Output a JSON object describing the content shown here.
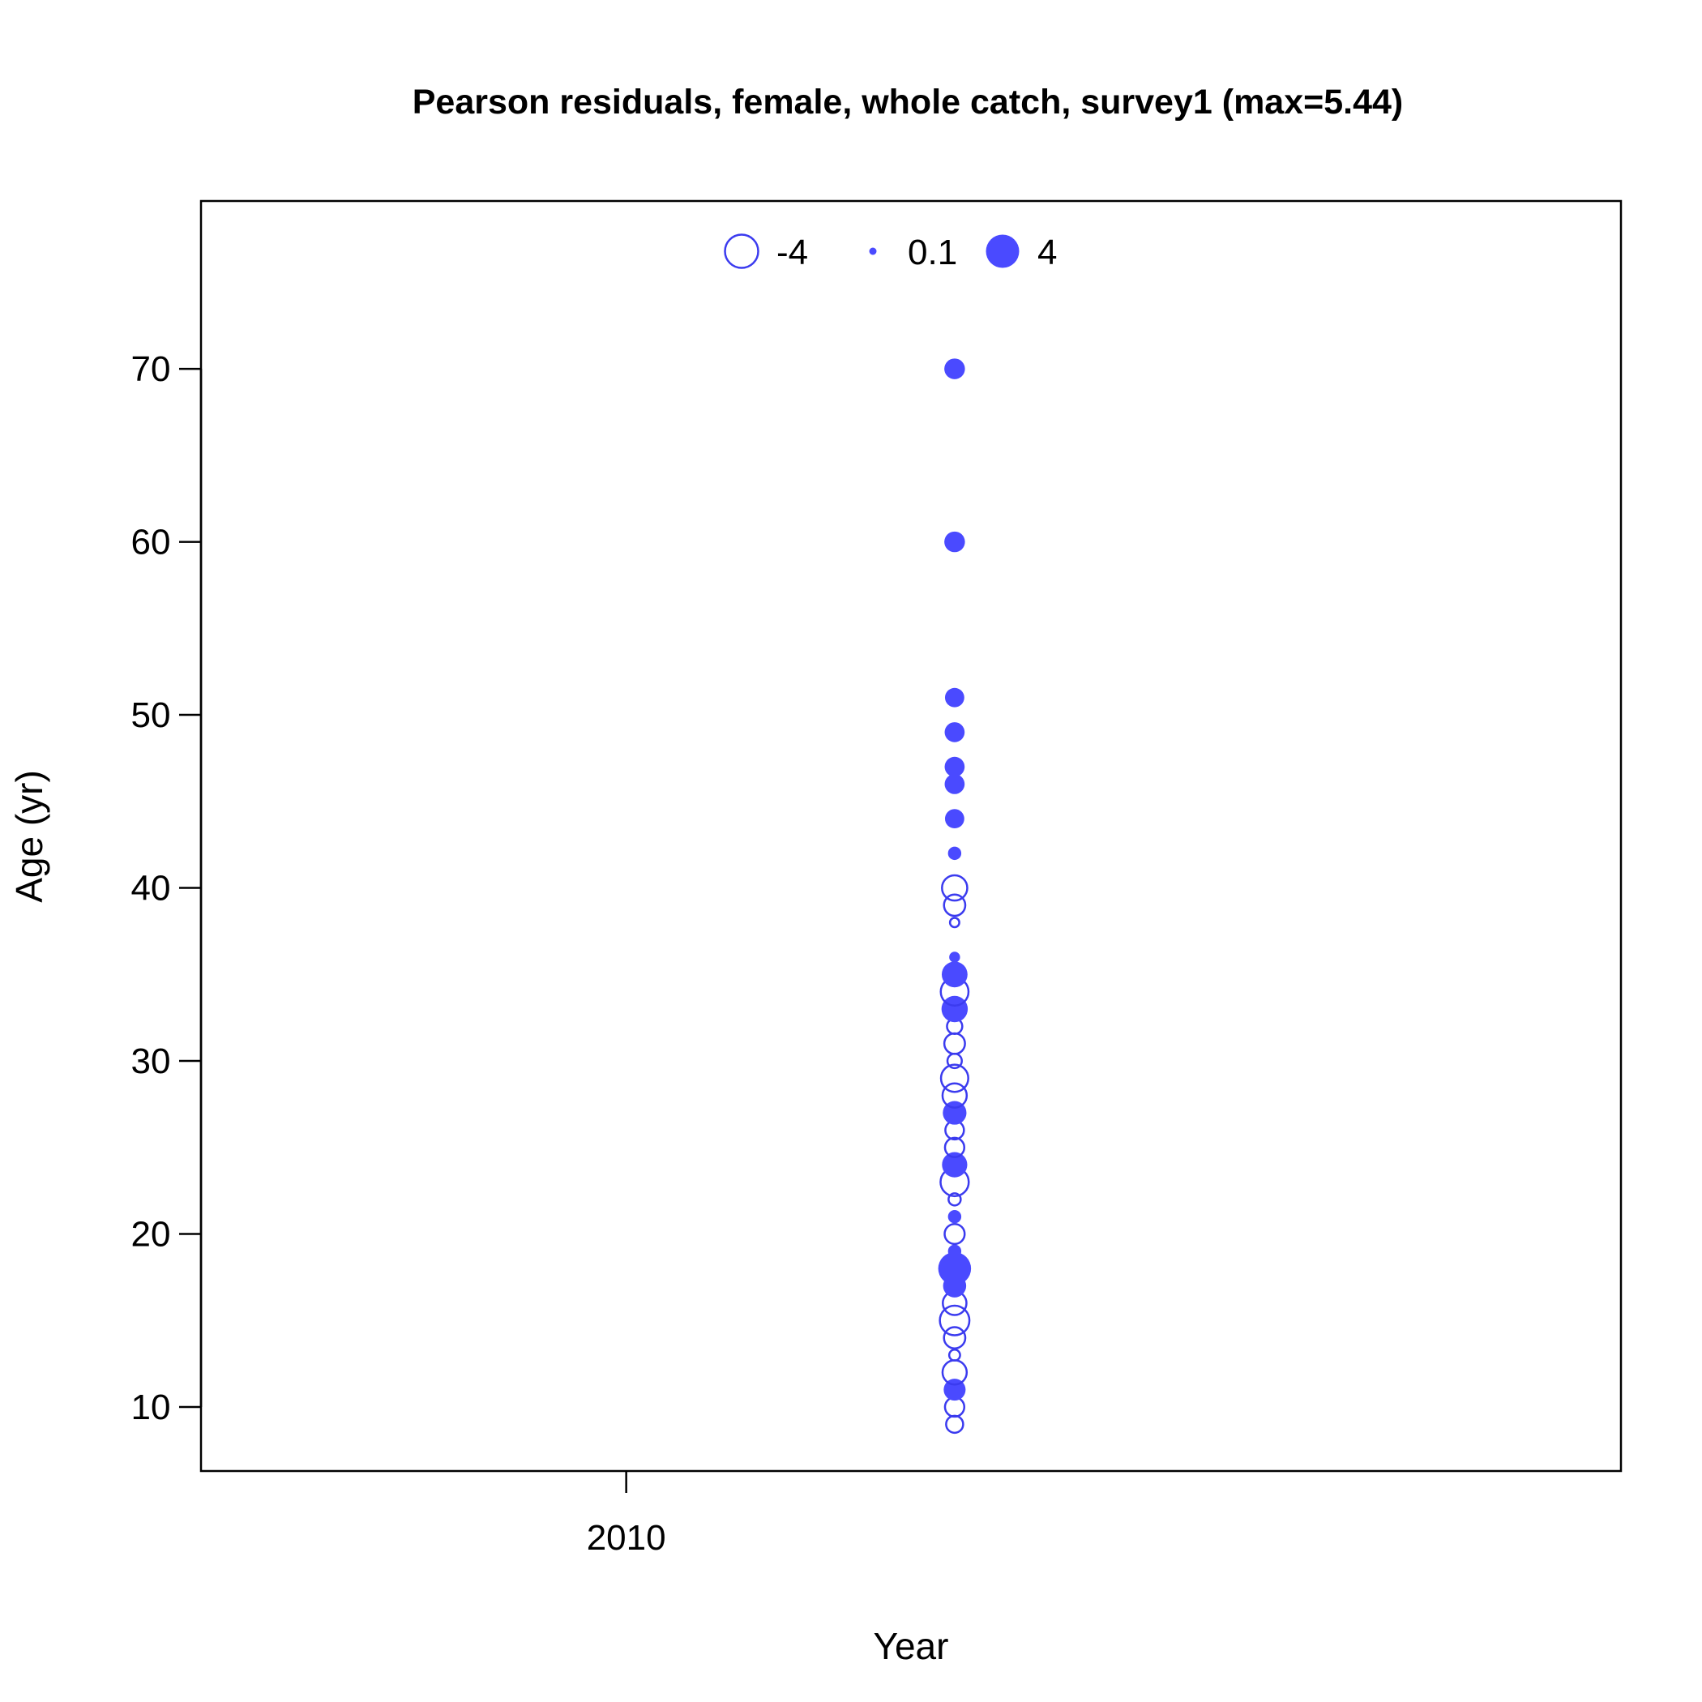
{
  "chart_data": {
    "type": "scatter",
    "subtype": "bubble",
    "title": "Pearson residuals, female, whole catch, survey1 (max=5.44)",
    "xlabel": "Year",
    "ylabel": "Age (yr)",
    "xlim": [
      2007.76,
      2015.24
    ],
    "ylim": [
      6.3,
      79.7
    ],
    "x_ticks": [
      2010
    ],
    "y_ticks": [
      10,
      20,
      30,
      40,
      50,
      60,
      70
    ],
    "grid": false,
    "colors": {
      "positive_fill": "#4a4aff",
      "negative_stroke": "#3b3bef",
      "axis": "#000000"
    },
    "legend": {
      "placement": "top-center",
      "entries": [
        {
          "label": "-4",
          "value": -4
        },
        {
          "label": "0.1",
          "value": 0.1
        },
        {
          "label": "4",
          "value": 4
        }
      ]
    },
    "points": [
      {
        "year": 2011.73,
        "age": 9,
        "residual": -0.9
      },
      {
        "year": 2011.73,
        "age": 10,
        "residual": -1.2
      },
      {
        "year": 2011.73,
        "age": 11,
        "residual": 1.6
      },
      {
        "year": 2011.73,
        "age": 12,
        "residual": -2.0
      },
      {
        "year": 2011.73,
        "age": 13,
        "residual": -0.3
      },
      {
        "year": 2011.73,
        "age": 14,
        "residual": -1.5
      },
      {
        "year": 2011.73,
        "age": 15,
        "residual": -3.1
      },
      {
        "year": 2011.73,
        "age": 16,
        "residual": -1.9
      },
      {
        "year": 2011.73,
        "age": 17,
        "residual": 1.8
      },
      {
        "year": 2011.73,
        "age": 18,
        "residual": 3.9
      },
      {
        "year": 2011.73,
        "age": 19,
        "residual": 0.5
      },
      {
        "year": 2011.73,
        "age": 20,
        "residual": -1.3
      },
      {
        "year": 2011.73,
        "age": 21,
        "residual": 0.5
      },
      {
        "year": 2011.73,
        "age": 22,
        "residual": -0.4
      },
      {
        "year": 2011.73,
        "age": 23,
        "residual": -2.8
      },
      {
        "year": 2011.73,
        "age": 24,
        "residual": 2.2
      },
      {
        "year": 2011.73,
        "age": 25,
        "residual": -1.2
      },
      {
        "year": 2011.73,
        "age": 26,
        "residual": -1.1
      },
      {
        "year": 2011.73,
        "age": 27,
        "residual": 1.9
      },
      {
        "year": 2011.73,
        "age": 28,
        "residual": -2.0
      },
      {
        "year": 2011.73,
        "age": 29,
        "residual": -2.6
      },
      {
        "year": 2011.73,
        "age": 30,
        "residual": -0.6
      },
      {
        "year": 2011.73,
        "age": 31,
        "residual": -1.4
      },
      {
        "year": 2011.73,
        "age": 32,
        "residual": -0.7
      },
      {
        "year": 2011.73,
        "age": 33,
        "residual": 2.4
      },
      {
        "year": 2011.73,
        "age": 34,
        "residual": -2.7
      },
      {
        "year": 2011.73,
        "age": 35,
        "residual": 2.3
      },
      {
        "year": 2011.73,
        "age": 36,
        "residual": 0.3
      },
      {
        "year": 2011.73,
        "age": 38,
        "residual": -0.2
      },
      {
        "year": 2011.73,
        "age": 39,
        "residual": -1.5
      },
      {
        "year": 2011.73,
        "age": 40,
        "residual": -2.2
      },
      {
        "year": 2011.73,
        "age": 42,
        "residual": 0.5
      },
      {
        "year": 2011.73,
        "age": 44,
        "residual": 1.2
      },
      {
        "year": 2011.73,
        "age": 46,
        "residual": 1.3
      },
      {
        "year": 2011.73,
        "age": 47,
        "residual": 1.3
      },
      {
        "year": 2011.73,
        "age": 49,
        "residual": 1.3
      },
      {
        "year": 2011.73,
        "age": 51,
        "residual": 1.2
      },
      {
        "year": 2011.73,
        "age": 60,
        "residual": 1.4
      },
      {
        "year": 2011.73,
        "age": 70,
        "residual": 1.4
      }
    ]
  }
}
